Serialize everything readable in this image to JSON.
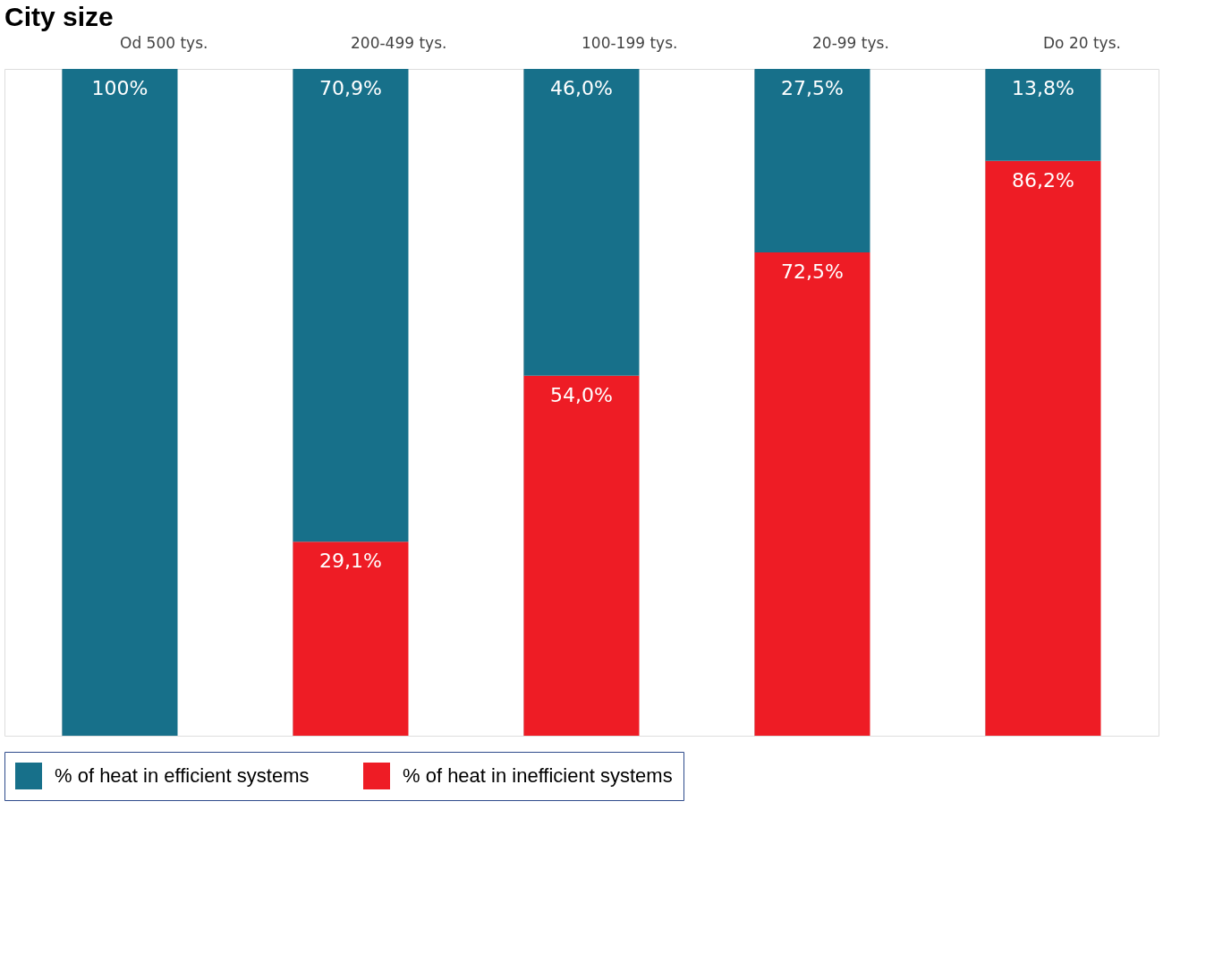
{
  "chart_data": {
    "type": "bar",
    "title": "City size",
    "stacked": true,
    "categories": [
      "Od 500 tys.",
      "200-499 tys.",
      "100-199 tys.",
      "20-99 tys.",
      "Do 20 tys."
    ],
    "series": [
      {
        "name": "% of heat in inefficient systems",
        "color": "#ee1c25",
        "values": [
          0,
          29.1,
          54.0,
          72.5,
          86.2
        ],
        "value_labels": [
          null,
          "29,1%",
          "54,0%",
          "72,5%",
          "86,2%"
        ]
      },
      {
        "name": "% of heat in efficient systems",
        "color": "#17708a",
        "values": [
          100,
          70.9,
          46.0,
          27.5,
          13.8
        ],
        "value_labels": [
          "100%",
          "70,9%",
          "46,0%",
          "27,5%",
          "13,8%"
        ]
      }
    ],
    "ylim": [
      0,
      100
    ],
    "tick_labels": "x",
    "legend": "bottom"
  }
}
